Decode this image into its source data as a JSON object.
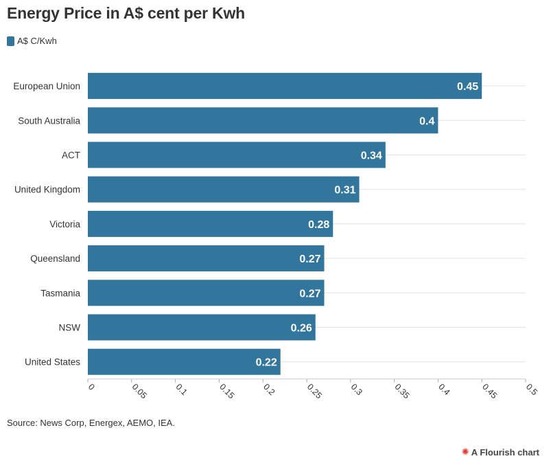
{
  "chart_data": {
    "type": "bar",
    "orientation": "horizontal",
    "title": "Energy Price in A$ cent per Kwh",
    "categories": [
      "European Union",
      "South Australia",
      "ACT",
      "United Kingdom",
      "Victoria",
      "Queensland",
      "Tasmania",
      "NSW",
      "United States"
    ],
    "series": [
      {
        "name": "A$ C/Kwh",
        "values": [
          0.45,
          0.4,
          0.34,
          0.31,
          0.28,
          0.27,
          0.27,
          0.26,
          0.22
        ],
        "labels": [
          "0.45",
          "0.4",
          "0.34",
          "0.31",
          "0.28",
          "0.27",
          "0.27",
          "0.26",
          "0.22"
        ]
      }
    ],
    "xlim": [
      0,
      0.5
    ],
    "x_ticks": [
      0,
      0.05,
      0.1,
      0.15,
      0.2,
      0.25,
      0.3,
      0.35,
      0.4,
      0.45,
      0.5
    ],
    "x_tick_labels": [
      "0",
      "0.05",
      "0.1",
      "0.15",
      "0.2",
      "0.25",
      "0.3",
      "0.35",
      "0.4",
      "0.45",
      "0.5"
    ],
    "grid": true,
    "legend_position": "top-left",
    "bar_color": "#32769e",
    "xlabel": "",
    "ylabel": ""
  },
  "source": "Source: News Corp, Energex, AEMO, IEA.",
  "credit": "A Flourish chart",
  "credit_icon": "flourish-logo-icon",
  "colors": {
    "bar": "#32769e",
    "grid": "#e2e2e2",
    "accent": "#e5352b"
  }
}
